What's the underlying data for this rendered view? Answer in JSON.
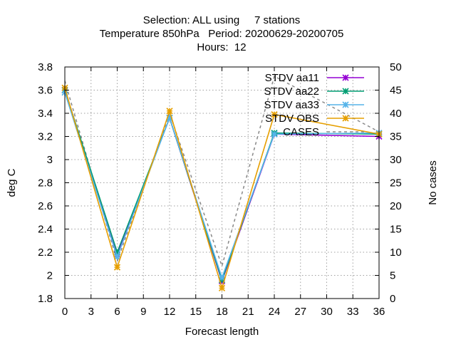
{
  "chart_data": {
    "type": "line",
    "title_lines": [
      "Selection: ALL using     7 stations",
      "Temperature 850hPa   Period: 20200629-20200705",
      "Hours:  12"
    ],
    "xlabel": "Forecast length",
    "ylabel": "deg C",
    "y2label": "No cases",
    "xlim": [
      0,
      36
    ],
    "ylim": [
      1.8,
      3.8
    ],
    "y2lim": [
      0,
      50
    ],
    "xticks": [
      0,
      3,
      6,
      9,
      12,
      15,
      18,
      21,
      24,
      27,
      30,
      33,
      36
    ],
    "yticks": [
      1.8,
      2,
      2.2,
      2.4,
      2.6,
      2.8,
      3,
      3.2,
      3.4,
      3.6,
      3.8
    ],
    "y2ticks": [
      0,
      5,
      10,
      15,
      20,
      25,
      30,
      35,
      40,
      45,
      50
    ],
    "grid": true,
    "legend_position": "top-right",
    "x": [
      0,
      6,
      12,
      18,
      24,
      36
    ],
    "series": [
      {
        "name": "STDV aa11",
        "color": "#9400d3",
        "marker": "x",
        "axis": "y1",
        "values": [
          3.6,
          2.18,
          3.36,
          1.95,
          3.22,
          3.2
        ]
      },
      {
        "name": "STDV aa22",
        "color": "#009e73",
        "marker": "x",
        "axis": "y1",
        "values": [
          3.6,
          2.2,
          3.36,
          1.96,
          3.23,
          3.22
        ]
      },
      {
        "name": "STDV aa33",
        "color": "#56b4e9",
        "marker": "x",
        "axis": "y1",
        "values": [
          3.58,
          2.16,
          3.36,
          1.98,
          3.22,
          3.23
        ]
      },
      {
        "name": "STDV OBS",
        "color": "#e69f00",
        "marker": "x",
        "axis": "y1",
        "values": [
          3.62,
          2.07,
          3.42,
          1.89,
          3.39,
          3.22
        ]
      },
      {
        "name": "CASES",
        "color": "#888888",
        "marker": "none",
        "dashed": true,
        "axis": "y2",
        "values": [
          47,
          8,
          40,
          7,
          48,
          36
        ]
      }
    ]
  }
}
